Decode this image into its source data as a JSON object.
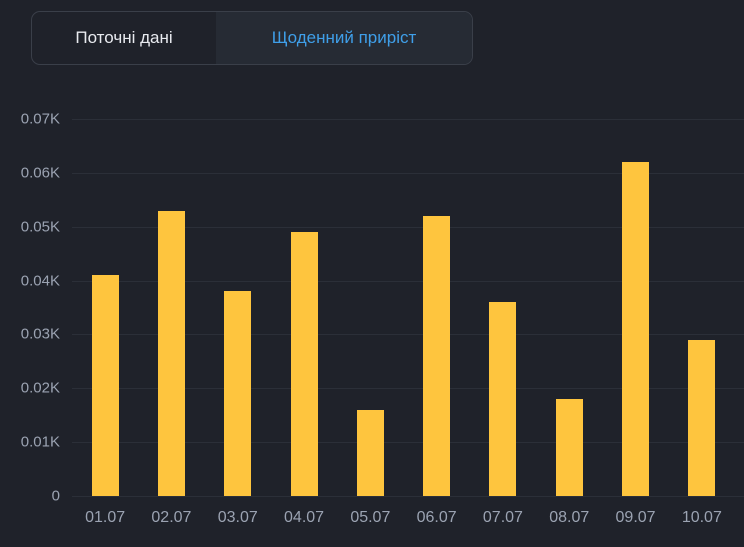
{
  "tabs": [
    {
      "label": "Поточні дані",
      "active": false
    },
    {
      "label": "Щоденний приріст",
      "active": true
    }
  ],
  "colors": {
    "background": "#1f222a",
    "bar": "#fec53e",
    "gridline": "#2b2f38",
    "axis_text": "#9ba3b2",
    "tab_border": "#3a3f49",
    "tab_active_bg": "#262b34",
    "tab_active_text": "#3f9fe9",
    "tab_inactive_text": "#e8eaef"
  },
  "chart_data": {
    "type": "bar",
    "title": "",
    "xlabel": "",
    "ylabel": "",
    "categories": [
      "01.07",
      "02.07",
      "03.07",
      "04.07",
      "05.07",
      "06.07",
      "07.07",
      "08.07",
      "09.07",
      "10.07"
    ],
    "values": [
      41,
      53,
      38,
      49,
      16,
      52,
      36,
      18,
      62,
      29
    ],
    "values_as_displayed": [
      "0.041K",
      "0.053K",
      "0.038K",
      "0.049K",
      "0.016K",
      "0.052K",
      "0.036K",
      "0.018K",
      "0.062K",
      "0.029K"
    ],
    "ylim": [
      0,
      70
    ],
    "y_ticks": [
      {
        "value": 0,
        "label": "0"
      },
      {
        "value": 10,
        "label": "0.01K"
      },
      {
        "value": 20,
        "label": "0.02K"
      },
      {
        "value": 30,
        "label": "0.03K"
      },
      {
        "value": 40,
        "label": "0.04K"
      },
      {
        "value": 50,
        "label": "0.05K"
      },
      {
        "value": 60,
        "label": "0.06K"
      },
      {
        "value": 70,
        "label": "0.07K"
      }
    ],
    "bar_color": "#fec53e",
    "grid": true,
    "legend": false
  }
}
